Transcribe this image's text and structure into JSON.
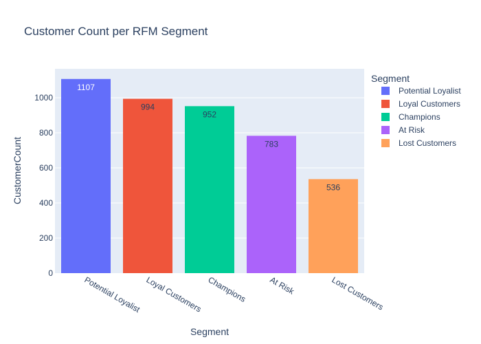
{
  "chart_data": {
    "type": "bar",
    "title": "Customer Count per RFM Segment",
    "xlabel": "Segment",
    "ylabel": "CustomerCount",
    "categories": [
      "Potential Loyalist",
      "Loyal Customers",
      "Champions",
      "At Risk",
      "Lost Customers"
    ],
    "values": [
      1107,
      994,
      952,
      783,
      536
    ],
    "colors": [
      "#636efa",
      "#EF553B",
      "#00cc96",
      "#ab63fa",
      "#FFA15A"
    ],
    "label_colors": [
      "#ffffff",
      "#2a3f5f",
      "#2a3f5f",
      "#2a3f5f",
      "#2a3f5f"
    ],
    "ylim": [
      0,
      1165
    ],
    "yticks": [
      0,
      200,
      400,
      600,
      800,
      1000
    ],
    "grid": true,
    "legend": {
      "title": "Segment",
      "placement": "right",
      "items": [
        "Potential Loyalist",
        "Loyal Customers",
        "Champions",
        "At Risk",
        "Lost Customers"
      ]
    },
    "plot_background": "#e5ecf6"
  }
}
